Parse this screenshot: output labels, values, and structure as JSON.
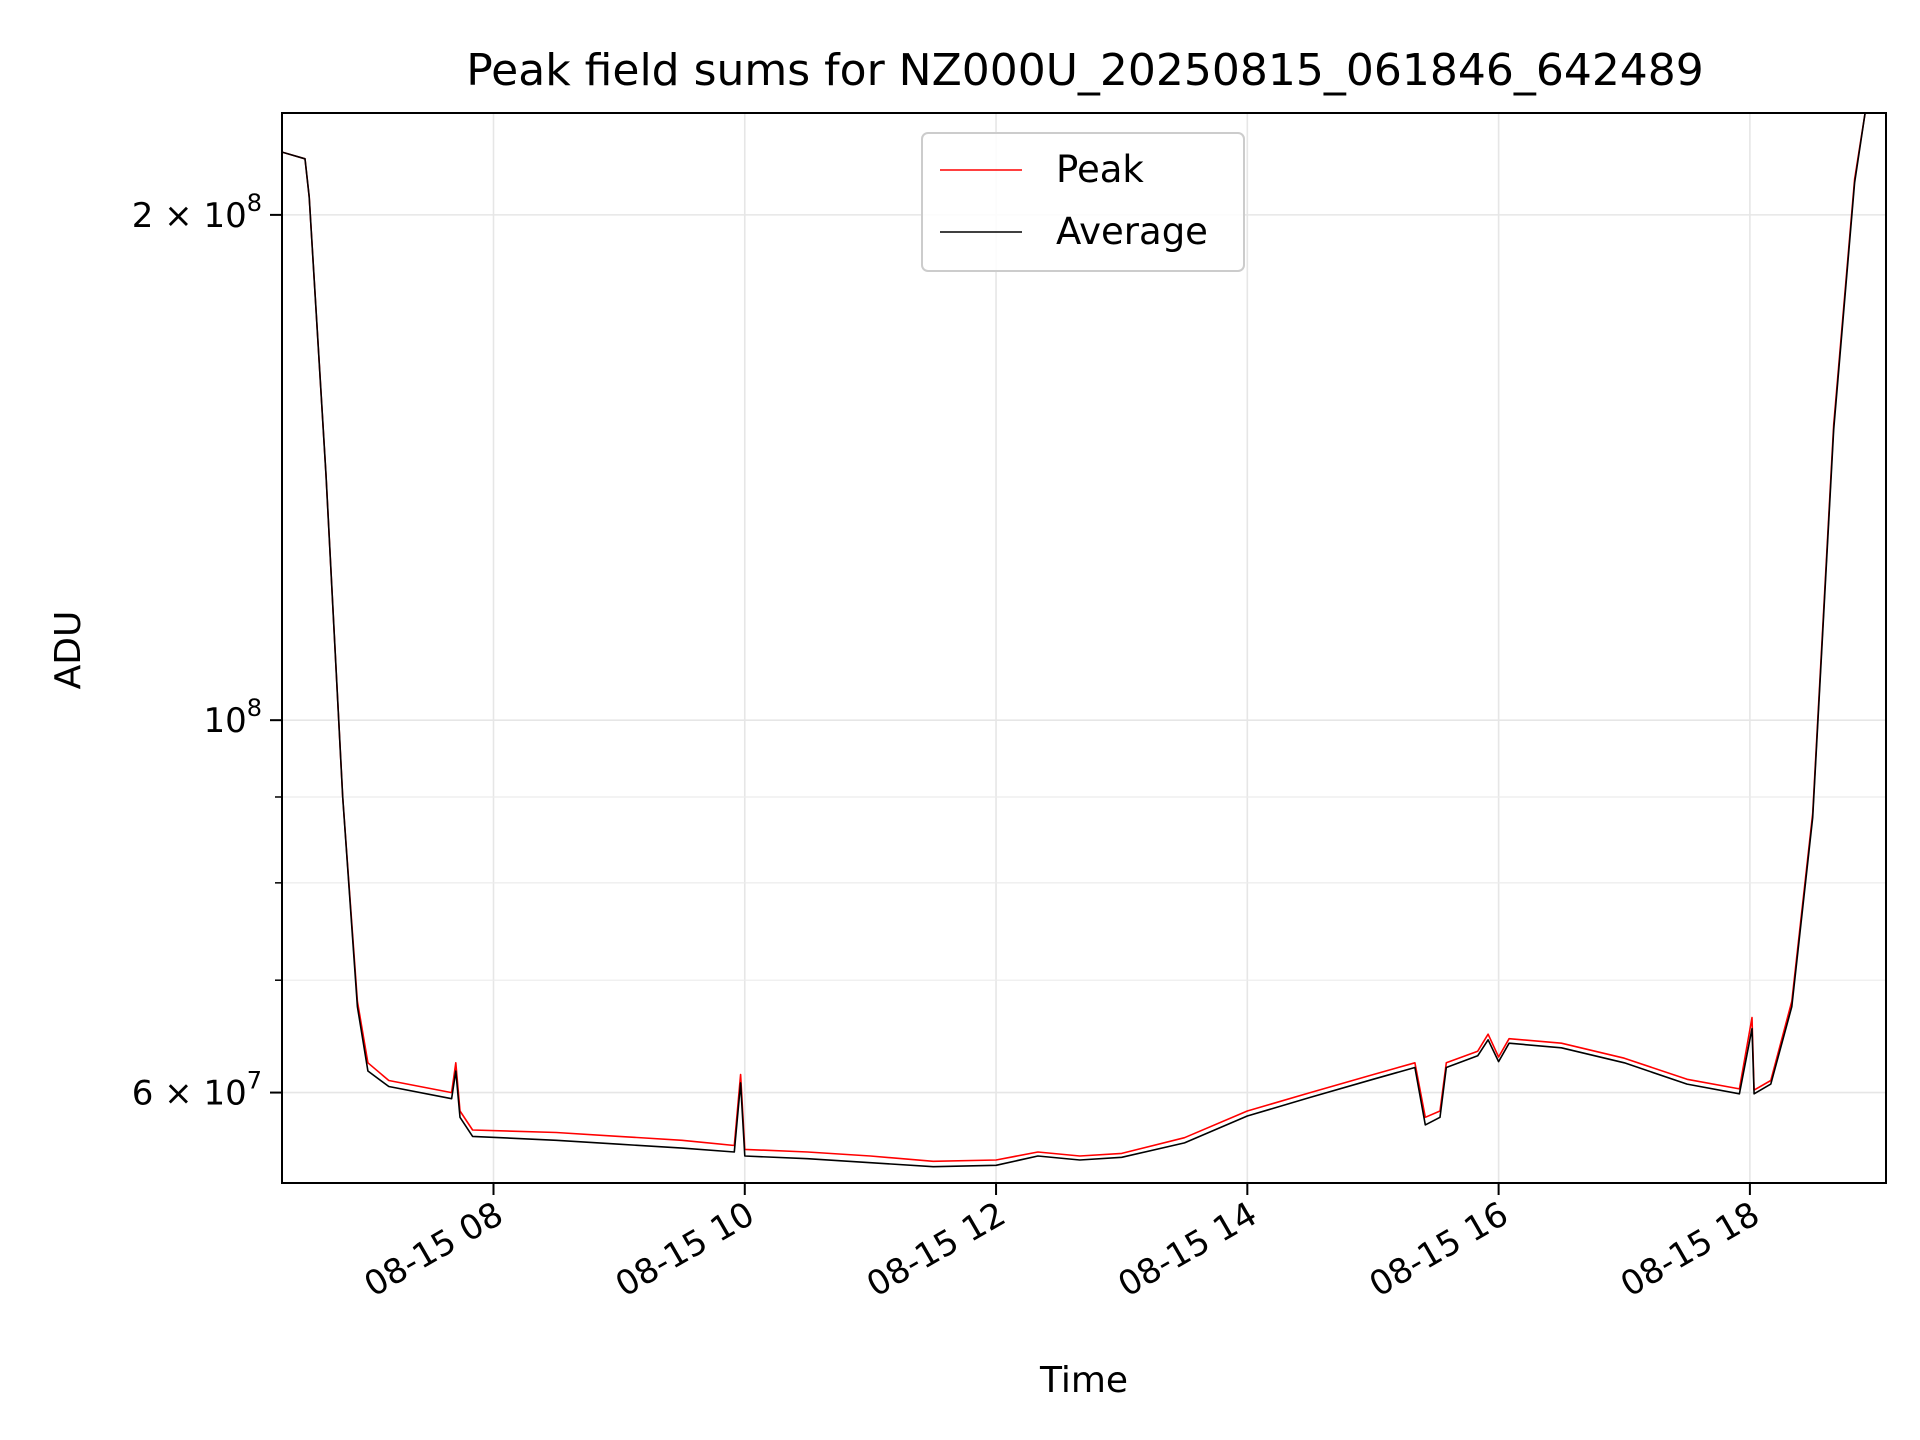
{
  "chart_data": {
    "type": "line",
    "title": "Peak field sums for NZ000U_20250815_061846_642489",
    "xlabel": "Time",
    "ylabel": "ADU",
    "y_scale": "log",
    "ylim": [
      53000000,
      230000000
    ],
    "xlim": [
      "2025-08-15 06:19",
      "2025-08-15 19:05"
    ],
    "grid": true,
    "legend_position": "top-center",
    "x_ticks": [
      {
        "value": "2025-08-15 08:00",
        "label": "08-15 08"
      },
      {
        "value": "2025-08-15 10:00",
        "label": "08-15 10"
      },
      {
        "value": "2025-08-15 12:00",
        "label": "08-15 12"
      },
      {
        "value": "2025-08-15 14:00",
        "label": "08-15 14"
      },
      {
        "value": "2025-08-15 16:00",
        "label": "08-15 16"
      },
      {
        "value": "2025-08-15 18:00",
        "label": "08-15 18"
      }
    ],
    "y_ticks": [
      {
        "value": 200000000,
        "base": "2 × 10",
        "exp": "8"
      },
      {
        "value": 100000000,
        "base": "10",
        "exp": "8"
      },
      {
        "value": 60000000,
        "base": "6 × 10",
        "exp": "7"
      }
    ],
    "y_minor_ticks": [
      70000000,
      80000000,
      90000000
    ],
    "series": [
      {
        "name": "Peak",
        "color": "#ff0000",
        "points": [
          [
            "2025-08-15 06:19",
            218000000
          ],
          [
            "2025-08-15 06:30",
            216000000
          ],
          [
            "2025-08-15 06:32",
            205000000
          ],
          [
            "2025-08-15 06:40",
            140000000
          ],
          [
            "2025-08-15 06:48",
            90000000
          ],
          [
            "2025-08-15 06:55",
            68000000
          ],
          [
            "2025-08-15 07:00",
            62500000
          ],
          [
            "2025-08-15 07:10",
            61000000
          ],
          [
            "2025-08-15 07:40",
            60000000
          ],
          [
            "2025-08-15 07:42",
            62500000
          ],
          [
            "2025-08-15 07:44",
            58500000
          ],
          [
            "2025-08-15 07:50",
            57000000
          ],
          [
            "2025-08-15 08:30",
            56800000
          ],
          [
            "2025-08-15 09:00",
            56500000
          ],
          [
            "2025-08-15 09:30",
            56200000
          ],
          [
            "2025-08-15 09:55",
            55800000
          ],
          [
            "2025-08-15 09:58",
            61500000
          ],
          [
            "2025-08-15 10:00",
            55500000
          ],
          [
            "2025-08-15 10:30",
            55300000
          ],
          [
            "2025-08-15 11:00",
            55000000
          ],
          [
            "2025-08-15 11:30",
            54600000
          ],
          [
            "2025-08-15 12:00",
            54700000
          ],
          [
            "2025-08-15 12:20",
            55300000
          ],
          [
            "2025-08-15 12:40",
            55000000
          ],
          [
            "2025-08-15 13:00",
            55200000
          ],
          [
            "2025-08-15 13:30",
            56400000
          ],
          [
            "2025-08-15 14:00",
            58500000
          ],
          [
            "2025-08-15 14:30",
            60000000
          ],
          [
            "2025-08-15 15:00",
            61500000
          ],
          [
            "2025-08-15 15:20",
            62500000
          ],
          [
            "2025-08-15 15:25",
            58000000
          ],
          [
            "2025-08-15 15:32",
            58500000
          ],
          [
            "2025-08-15 15:35",
            62500000
          ],
          [
            "2025-08-15 15:50",
            63500000
          ],
          [
            "2025-08-15 15:55",
            65000000
          ],
          [
            "2025-08-15 16:00",
            63000000
          ],
          [
            "2025-08-15 16:05",
            64600000
          ],
          [
            "2025-08-15 16:30",
            64200000
          ],
          [
            "2025-08-15 17:00",
            62900000
          ],
          [
            "2025-08-15 17:30",
            61100000
          ],
          [
            "2025-08-15 17:55",
            60300000
          ],
          [
            "2025-08-15 18:01",
            66500000
          ],
          [
            "2025-08-15 18:02",
            60200000
          ],
          [
            "2025-08-15 18:10",
            61000000
          ],
          [
            "2025-08-15 18:20",
            68000000
          ],
          [
            "2025-08-15 18:30",
            88000000
          ],
          [
            "2025-08-15 18:40",
            150000000
          ],
          [
            "2025-08-15 18:50",
            210000000
          ],
          [
            "2025-08-15 18:55",
            230000000
          ],
          [
            "2025-08-15 19:05",
            230000000
          ]
        ]
      },
      {
        "name": "Average",
        "color": "#000000",
        "points": [
          [
            "2025-08-15 06:19",
            218000000
          ],
          [
            "2025-08-15 06:30",
            216000000
          ],
          [
            "2025-08-15 06:32",
            205000000
          ],
          [
            "2025-08-15 06:40",
            140000000
          ],
          [
            "2025-08-15 06:48",
            90000000
          ],
          [
            "2025-08-15 06:55",
            67500000
          ],
          [
            "2025-08-15 07:00",
            61800000
          ],
          [
            "2025-08-15 07:10",
            60500000
          ],
          [
            "2025-08-15 07:40",
            59500000
          ],
          [
            "2025-08-15 07:42",
            61800000
          ],
          [
            "2025-08-15 07:44",
            58000000
          ],
          [
            "2025-08-15 07:50",
            56500000
          ],
          [
            "2025-08-15 08:30",
            56200000
          ],
          [
            "2025-08-15 09:00",
            55900000
          ],
          [
            "2025-08-15 09:30",
            55600000
          ],
          [
            "2025-08-15 09:55",
            55300000
          ],
          [
            "2025-08-15 09:58",
            60800000
          ],
          [
            "2025-08-15 10:00",
            55000000
          ],
          [
            "2025-08-15 10:30",
            54800000
          ],
          [
            "2025-08-15 11:00",
            54500000
          ],
          [
            "2025-08-15 11:30",
            54200000
          ],
          [
            "2025-08-15 12:00",
            54300000
          ],
          [
            "2025-08-15 12:20",
            55000000
          ],
          [
            "2025-08-15 12:40",
            54700000
          ],
          [
            "2025-08-15 13:00",
            54900000
          ],
          [
            "2025-08-15 13:30",
            56000000
          ],
          [
            "2025-08-15 14:00",
            58100000
          ],
          [
            "2025-08-15 14:30",
            59600000
          ],
          [
            "2025-08-15 15:00",
            61100000
          ],
          [
            "2025-08-15 15:20",
            62100000
          ],
          [
            "2025-08-15 15:25",
            57400000
          ],
          [
            "2025-08-15 15:32",
            58000000
          ],
          [
            "2025-08-15 15:35",
            62100000
          ],
          [
            "2025-08-15 15:50",
            63100000
          ],
          [
            "2025-08-15 15:55",
            64500000
          ],
          [
            "2025-08-15 16:00",
            62600000
          ],
          [
            "2025-08-15 16:05",
            64200000
          ],
          [
            "2025-08-15 16:30",
            63800000
          ],
          [
            "2025-08-15 17:00",
            62500000
          ],
          [
            "2025-08-15 17:30",
            60700000
          ],
          [
            "2025-08-15 17:55",
            59900000
          ],
          [
            "2025-08-15 18:01",
            65500000
          ],
          [
            "2025-08-15 18:02",
            59900000
          ],
          [
            "2025-08-15 18:10",
            60700000
          ],
          [
            "2025-08-15 18:20",
            67500000
          ],
          [
            "2025-08-15 18:30",
            87500000
          ],
          [
            "2025-08-15 18:40",
            149000000
          ],
          [
            "2025-08-15 18:50",
            209000000
          ],
          [
            "2025-08-15 18:55",
            230000000
          ],
          [
            "2025-08-15 19:05",
            230000000
          ]
        ]
      }
    ]
  }
}
